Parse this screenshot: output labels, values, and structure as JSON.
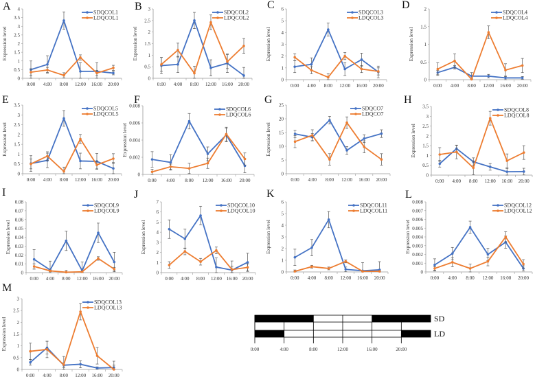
{
  "colors": {
    "sd": "#4472C4",
    "ld": "#ED7D31",
    "axis": "#999999",
    "error_bar": "#555555"
  },
  "chart_data": [
    {
      "type": "line",
      "panel": "A",
      "x": [
        "0:00",
        "4:00",
        "8:00",
        "12:00",
        "16:00",
        "20:00"
      ],
      "ylabel": "Expression level",
      "ylim": [
        0,
        4
      ],
      "yticks": [
        0,
        0.5,
        1,
        1.5,
        2,
        2.5,
        3,
        3.5,
        4
      ],
      "legend": "top-right",
      "series": [
        {
          "name": "SDQCOL1",
          "values": [
            0.5,
            0.8,
            3.33,
            0.4,
            0.4,
            0.3
          ],
          "errors": [
            0.5,
            0.5,
            0.5,
            0.5,
            0.5,
            0.1
          ]
        },
        {
          "name": "LDQCOL1",
          "values": [
            0.35,
            0.48,
            0.17,
            1.2,
            0.3,
            0.6
          ],
          "errors": [
            0.2,
            0.15,
            0.15,
            0.15,
            0.15,
            0.15
          ]
        }
      ]
    },
    {
      "type": "line",
      "panel": "B",
      "x": [
        "0:00",
        "4:00",
        "8:00",
        "12:00",
        "16:00",
        "20:00"
      ],
      "ylabel": "Expression level",
      "ylim": [
        0,
        3
      ],
      "yticks": [
        0,
        0.5,
        1,
        1.5,
        2,
        2.5,
        3
      ],
      "legend": "top-right",
      "series": [
        {
          "name": "SDQCOL2",
          "values": [
            0.55,
            0.6,
            2.5,
            0.45,
            0.65,
            0.12
          ],
          "errors": [
            0.35,
            0.35,
            0.35,
            0.35,
            0.4,
            0.35
          ]
        },
        {
          "name": "LDQCOL2",
          "values": [
            0.6,
            1.22,
            0.22,
            2.42,
            0.72,
            1.4
          ],
          "errors": [
            0.3,
            0.3,
            0.3,
            0.32,
            0.3,
            0.32
          ]
        }
      ]
    },
    {
      "type": "line",
      "panel": "C",
      "x": [
        "0:00",
        "4:00",
        "8:00",
        "12:00",
        "16:00",
        "20:00"
      ],
      "ylabel": "Expression level",
      "ylim": [
        0,
        6
      ],
      "yticks": [
        0,
        1,
        2,
        3,
        4,
        5,
        6
      ],
      "legend": "top-right",
      "series": [
        {
          "name": "SDQCOL3",
          "values": [
            1.1,
            1.3,
            4.25,
            0.9,
            1.7,
            0.65
          ],
          "errors": [
            0.5,
            0.55,
            0.55,
            0.55,
            0.55,
            0.5
          ]
        },
        {
          "name": "LDQCOL3",
          "values": [
            1.9,
            0.8,
            0.2,
            2.0,
            0.9,
            0.7
          ],
          "errors": [
            0.3,
            0.3,
            0.3,
            0.3,
            0.3,
            0.3
          ]
        }
      ]
    },
    {
      "type": "line",
      "panel": "D",
      "x": [
        "0:00",
        "4:00",
        "8:00",
        "12:00",
        "16:00",
        "20:00"
      ],
      "ylabel": "Expression level",
      "ylim": [
        0,
        2
      ],
      "yticks": [
        0,
        0.5,
        1,
        1.5,
        2
      ],
      "legend": "top-right",
      "series": [
        {
          "name": "SDQCOL4",
          "values": [
            0.2,
            0.35,
            0.1,
            0.1,
            0.05,
            0.05
          ],
          "errors": [
            0.06,
            0.05,
            0.1,
            0.05,
            0.05,
            0.04
          ]
        },
        {
          "name": "LDQCOL4",
          "values": [
            0.3,
            0.53,
            0.01,
            1.34,
            0.27,
            0.4
          ],
          "errors": [
            0.18,
            0.2,
            0.02,
            0.18,
            0.18,
            0.2
          ]
        }
      ]
    },
    {
      "type": "line",
      "panel": "E",
      "x": [
        "0:00",
        "4:00",
        "8:00",
        "12:00",
        "16:00",
        "20:00"
      ],
      "ylabel": "Expression level",
      "ylim": [
        0,
        3.5
      ],
      "yticks": [
        0,
        0.5,
        1,
        1.5,
        2,
        2.5,
        3,
        3.5
      ],
      "legend": "top-right",
      "series": [
        {
          "name": "SDQCOL5",
          "values": [
            0.52,
            0.68,
            2.82,
            0.65,
            0.63,
            0.27
          ],
          "errors": [
            0.4,
            0.37,
            0.4,
            0.4,
            0.4,
            0.3
          ]
        },
        {
          "name": "LDQCOL5",
          "values": [
            0.5,
            0.9,
            0.12,
            1.77,
            0.45,
            0.77
          ],
          "errors": [
            0.25,
            0.22,
            0.22,
            0.23,
            0.2,
            0.25
          ]
        }
      ]
    },
    {
      "type": "line",
      "panel": "F",
      "x": [
        "0:00",
        "4:00",
        "8:00",
        "12:00",
        "16:00",
        "20:00"
      ],
      "ylabel": "Expression level",
      "ylim": [
        0,
        0.008
      ],
      "yticks": [
        0,
        0.002,
        0.004,
        0.006,
        0.008
      ],
      "legend": "top-right",
      "series": [
        {
          "name": "SDQCOL6",
          "values": [
            0.00175,
            0.0014,
            0.0062,
            0.0024,
            0.0046,
            0.001
          ],
          "errors": [
            0.0009,
            0.0009,
            0.0009,
            0.0008,
            0.0008,
            0.0008
          ]
        },
        {
          "name": "LDQCOL6",
          "values": [
            0.0003,
            0.0009,
            0.0007,
            0.0013,
            0.0047,
            0.0018
          ],
          "errors": [
            0.0003,
            0.0003,
            0.0006,
            0.0006,
            0.0008,
            0.0007
          ]
        }
      ]
    },
    {
      "type": "line",
      "panel": "G",
      "x": [
        "0:00",
        "4:00",
        "8:00",
        "12:00",
        "16:00",
        "20:00"
      ],
      "ylabel": "Expression level",
      "ylim": [
        0,
        25
      ],
      "yticks": [
        0,
        5,
        10,
        15,
        20,
        25
      ],
      "legend": "top-right",
      "series": [
        {
          "name": "SDQCO7",
          "values": [
            14.5,
            13.3,
            19.5,
            8.5,
            12.8,
            14.6
          ],
          "errors": [
            1.3,
            1.3,
            1.4,
            1.4,
            1.4,
            1.4
          ]
        },
        {
          "name": "LDQCO7",
          "values": [
            11.7,
            14,
            5.2,
            18.6,
            9.8,
            5.2
          ],
          "errors": [
            2.2,
            2,
            2.1,
            2.1,
            2.2,
            2.1
          ]
        }
      ]
    },
    {
      "type": "line",
      "panel": "H",
      "x": [
        "0:00",
        "4:00",
        "8:00",
        "12:00",
        "16:00",
        "20:00"
      ],
      "ylabel": "Expression level",
      "ylim": [
        0,
        3.5
      ],
      "yticks": [
        0,
        0.5,
        1,
        1.5,
        2,
        2.5,
        3,
        3.5
      ],
      "legend": "top-right",
      "series": [
        {
          "name": "SDQCOL8",
          "values": [
            0.58,
            1.35,
            0.68,
            0.42,
            0.17,
            0.18
          ],
          "errors": [
            0.17,
            0.17,
            0.2,
            0.17,
            0.17,
            0.17
          ]
        },
        {
          "name": "LDQCOL8",
          "values": [
            1.05,
            1.18,
            0.37,
            2.9,
            0.73,
            1.15
          ],
          "errors": [
            0.35,
            0.35,
            0.35,
            0.35,
            0.35,
            0.35
          ]
        }
      ]
    },
    {
      "type": "line",
      "panel": "I",
      "x": [
        "0:00",
        "4:00",
        "8:00",
        "12:00",
        "16:00",
        "20:00"
      ],
      "ylabel": "Expression level",
      "ylim": [
        0,
        0.08
      ],
      "yticks": [
        0,
        0.01,
        0.02,
        0.03,
        0.04,
        0.05,
        0.06,
        0.07,
        0.08
      ],
      "legend": "top-right",
      "series": [
        {
          "name": "SDQCOL9",
          "values": [
            0.015,
            0.003,
            0.036,
            0.002,
            0.045,
            0.012
          ],
          "errors": [
            0.011,
            0.01,
            0.011,
            0.01,
            0.011,
            0.011
          ]
        },
        {
          "name": "LDQCOL9",
          "values": [
            0.007,
            0.002,
            0.0005,
            0.001,
            0.016,
            0.004
          ],
          "errors": [
            0.003,
            0.001,
            0.002,
            0.001,
            0.002,
            0.002
          ]
        }
      ]
    },
    {
      "type": "line",
      "panel": "J",
      "x": [
        "0:00",
        "4:00",
        "8:00",
        "12:00",
        "16:00",
        "20:00"
      ],
      "ylabel": "Expression level",
      "ylim": [
        0,
        7
      ],
      "yticks": [
        0,
        1,
        2,
        3,
        4,
        5,
        6,
        7
      ],
      "legend": "top-right",
      "series": [
        {
          "name": "SDQCOL10",
          "values": [
            4.3,
            3.35,
            5.65,
            0.55,
            0.25,
            1.02
          ],
          "errors": [
            0.92,
            0.95,
            0.92,
            0.9,
            0.9,
            0.9
          ]
        },
        {
          "name": "LDQCOL10",
          "values": [
            0.75,
            2.1,
            1.08,
            2.2,
            0.3,
            0.52
          ],
          "errors": [
            0.33,
            0.33,
            0.33,
            0.33,
            0.33,
            0.35
          ]
        }
      ]
    },
    {
      "type": "line",
      "panel": "K",
      "x": [
        "0:00",
        "4:00",
        "8:00",
        "12:00",
        "16:00",
        "20:00"
      ],
      "ylabel": "Expression level",
      "ylim": [
        0,
        6
      ],
      "yticks": [
        0,
        1,
        2,
        3,
        4,
        5,
        6
      ],
      "legend": "top-right",
      "series": [
        {
          "name": "SDQCOL11",
          "values": [
            1.25,
            2.08,
            4.48,
            0.22,
            0.1,
            0.18
          ],
          "errors": [
            0.7,
            0.7,
            0.7,
            0.2,
            0.7,
            0.7
          ]
        },
        {
          "name": "LDQCOL11",
          "values": [
            0.05,
            0.45,
            0.3,
            0.9,
            0.05,
            0.05
          ],
          "errors": [
            0.12,
            0.12,
            0.12,
            0.12,
            0.05,
            0.05
          ]
        }
      ]
    },
    {
      "type": "line",
      "panel": "L",
      "x": [
        "0:00",
        "4:00",
        "8:00",
        "12:00",
        "16:00",
        "20:00"
      ],
      "ylabel": "Expression level",
      "ylim": [
        0,
        0.008
      ],
      "yticks": [
        0,
        0.001,
        0.002,
        0.003,
        0.004,
        0.005,
        0.006,
        0.007,
        0.008
      ],
      "legend": "top-right",
      "series": [
        {
          "name": "SDQCOL12",
          "values": [
            0.0008,
            0.0021,
            0.0051,
            0.002,
            0.0034,
            0.0004
          ],
          "errors": [
            0.0007,
            0.0007,
            0.0007,
            0.0007,
            0.0007,
            0.0003
          ]
        },
        {
          "name": "LDQCOL12",
          "values": [
            0.0004,
            0.0011,
            0.0004,
            0.0012,
            0.004,
            0.0009
          ],
          "errors": [
            0.0002,
            0.0005,
            0.0005,
            0.0005,
            0.0006,
            0.0005
          ]
        }
      ]
    },
    {
      "type": "line",
      "panel": "M",
      "x": [
        "0:00",
        "4:00",
        "8:00",
        "12:00",
        "16:00",
        "20:00"
      ],
      "ylabel": "Expression level",
      "ylim": [
        0,
        3
      ],
      "yticks": [
        0,
        0.5,
        1,
        1.5,
        2,
        2.5,
        3
      ],
      "legend": "top-right",
      "series": [
        {
          "name": "SDQCOL13",
          "values": [
            0.3,
            0.92,
            0.18,
            0.22,
            0.06,
            0.08
          ],
          "errors": [
            0.12,
            0.27,
            0.1,
            0.15,
            0.05,
            0.1
          ]
        },
        {
          "name": "LDQCOL13",
          "values": [
            0.77,
            0.85,
            0.2,
            2.45,
            0.58,
            0.0
          ],
          "errors": [
            0.35,
            0.35,
            0.35,
            0.35,
            0.35,
            0.35
          ]
        }
      ]
    }
  ],
  "photoperiod": {
    "ticks": [
      "0:00",
      "4:00",
      "8:00",
      "12:00",
      "16:00",
      "20:00"
    ],
    "rows": [
      {
        "label": "SD",
        "dark_hours": [
          [
            0,
            8
          ],
          [
            16,
            24
          ]
        ]
      },
      {
        "label": "LD",
        "dark_hours": [
          [
            0,
            4
          ],
          [
            20,
            24
          ]
        ]
      }
    ]
  }
}
